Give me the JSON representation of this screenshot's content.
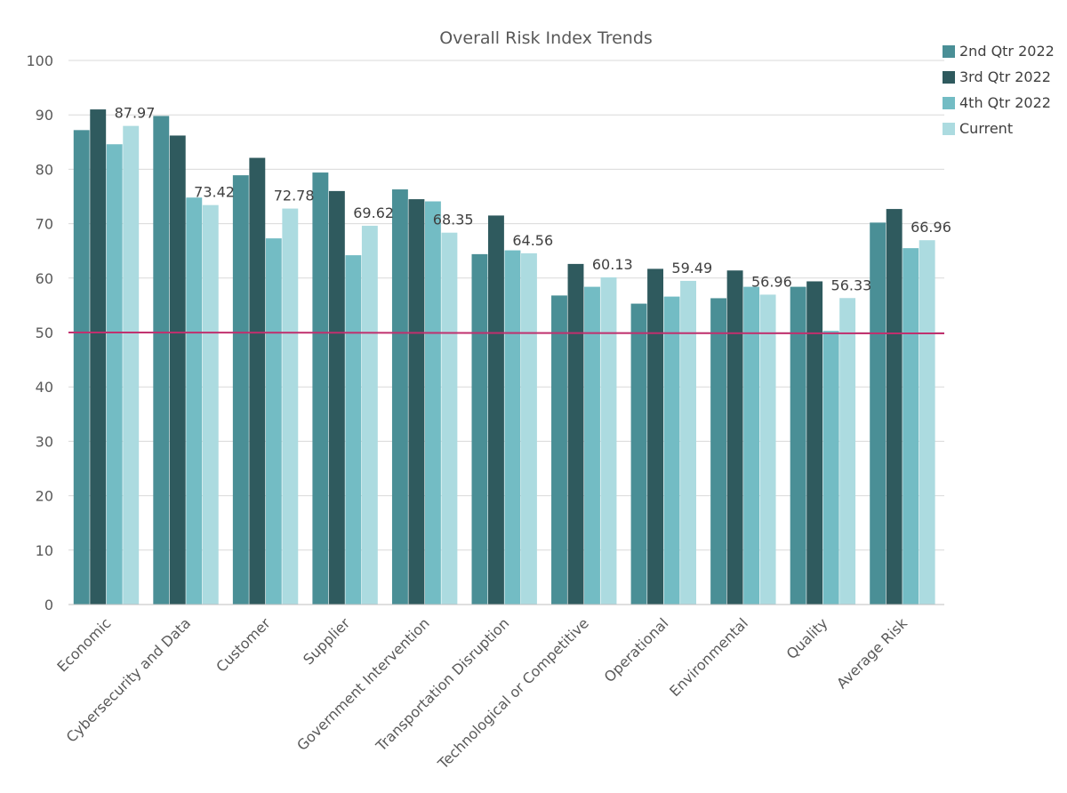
{
  "chart_data": {
    "type": "bar",
    "title": "Overall Risk Index Trends",
    "xlabel": "",
    "ylabel": "",
    "ylim": [
      0,
      100
    ],
    "yticks": [
      0,
      10,
      20,
      30,
      40,
      50,
      60,
      70,
      80,
      90,
      100
    ],
    "grid": true,
    "legend": "top-right",
    "reference_line": {
      "value": 50,
      "color": "#c0306e"
    },
    "categories": [
      "Economic",
      "Cybersecurity and Data",
      "Customer",
      "Supplier",
      "Government Intervention",
      "Transportation Disruption",
      "Technological or Competitive",
      "Operational",
      "Environmental",
      "Quality",
      "Average Risk"
    ],
    "series": [
      {
        "name": "2nd Qtr 2022",
        "color": "#4a8f96",
        "values": [
          87.2,
          89.8,
          78.9,
          79.4,
          76.3,
          64.4,
          56.8,
          55.3,
          56.3,
          58.4,
          70.2
        ]
      },
      {
        "name": "3rd Qtr 2022",
        "color": "#2f5a5e",
        "values": [
          91.0,
          86.2,
          82.1,
          76.0,
          74.5,
          71.5,
          62.6,
          61.7,
          61.4,
          59.4,
          72.7
        ]
      },
      {
        "name": "4th Qtr 2022",
        "color": "#73bcc4",
        "values": [
          84.6,
          74.8,
          67.3,
          64.2,
          74.1,
          65.1,
          58.4,
          56.6,
          58.4,
          50.3,
          65.5
        ]
      },
      {
        "name": "Current",
        "color": "#acdbe0",
        "values": [
          87.97,
          73.42,
          72.78,
          69.62,
          68.35,
          64.56,
          60.13,
          59.49,
          56.96,
          56.33,
          66.96
        ]
      }
    ],
    "data_labels": [
      "87.97",
      "73.42",
      "72.78",
      "69.62",
      "68.35",
      "64.56",
      "60.13",
      "59.49",
      "56.96",
      "56.33",
      "66.96"
    ]
  }
}
